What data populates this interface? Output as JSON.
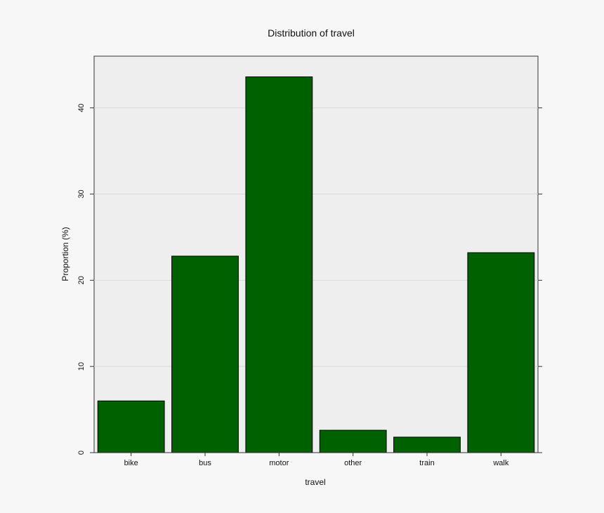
{
  "chart_data": {
    "type": "bar",
    "title": "Distribution of travel",
    "xlabel": "travel",
    "ylabel": "Proportion (%)",
    "categories": [
      "bike",
      "bus",
      "motor",
      "other",
      "train",
      "walk"
    ],
    "values": [
      6.0,
      22.8,
      43.6,
      2.6,
      1.8,
      23.2
    ],
    "ylim": [
      0,
      46
    ],
    "yticks": [
      0,
      10,
      20,
      30,
      40
    ],
    "grid": true,
    "legend": "none",
    "bar_color": "#006100",
    "panel_color": "#eeeeee",
    "background_color": "#f7f7f7"
  }
}
